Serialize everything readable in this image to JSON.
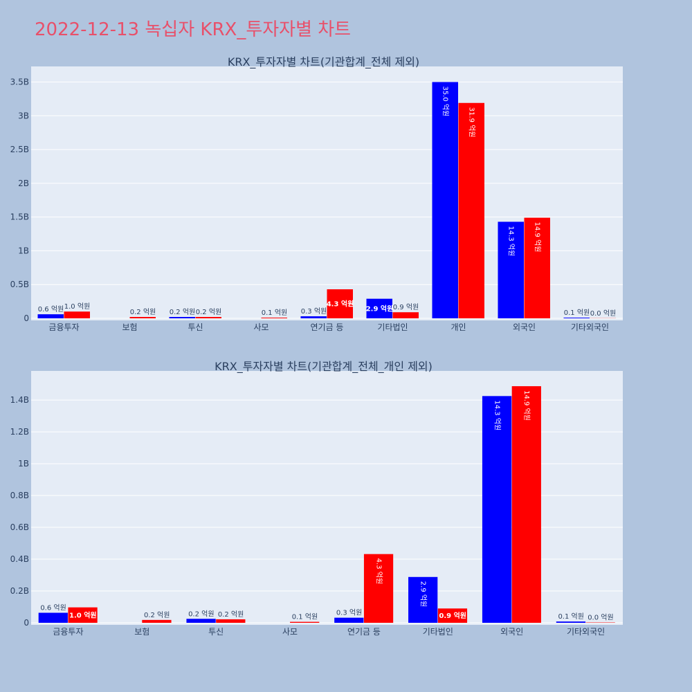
{
  "page_title": "2022-12-13 녹십자 KRX_투자자별 차트",
  "colors": {
    "buy": "#0000ff",
    "sell": "#ff0000",
    "plot_bg": "#e5ecf6",
    "page_bg": "#b0c4de"
  },
  "chart_data": [
    {
      "type": "bar",
      "title": "KRX_투자자별 차트(기관합계_전체 제외)",
      "categories": [
        "금융투자",
        "보험",
        "투신",
        "사모",
        "연기금 등",
        "기타법인",
        "개인",
        "외국인",
        "기타외국인"
      ],
      "series": [
        {
          "color": "#0000ff",
          "values": [
            0.06,
            0,
            0.02,
            0,
            0.03,
            0.29,
            3.5,
            1.43,
            0.01
          ],
          "labels": [
            "0.6 억원",
            "",
            "0.2 억원",
            "",
            "0.3 억원",
            "2.9 억원",
            "35.0 억원",
            "14.3 억원",
            "0.1 억원"
          ]
        },
        {
          "color": "#ff0000",
          "values": [
            0.1,
            0.02,
            0.02,
            0.01,
            0.43,
            0.09,
            3.19,
            1.49,
            0.002
          ],
          "labels": [
            "1.0 억원",
            "0.2 억원",
            "0.2 억원",
            "0.1 억원",
            "4.3 억원",
            "0.9 억원",
            "31.9 억원",
            "14.9 억원",
            "0.0 억원"
          ]
        }
      ],
      "y_ticks": [
        0,
        0.5,
        1,
        1.5,
        2,
        2.5,
        3,
        3.5
      ],
      "y_tick_labels": [
        "0",
        "0.5B",
        "1B",
        "1.5B",
        "2B",
        "2.5B",
        "3B",
        "3.5B"
      ],
      "ylim": [
        0,
        3.7
      ],
      "grid": true,
      "legend": "none"
    },
    {
      "type": "bar",
      "title": "KRX_투자자별 차트(기관합계_전체_개인 제외)",
      "categories": [
        "금융투자",
        "보험",
        "투신",
        "사모",
        "연기금 등",
        "기타법인",
        "외국인",
        "기타외국인"
      ],
      "series": [
        {
          "color": "#0000ff",
          "values": [
            0.063,
            0,
            0.025,
            0,
            0.032,
            0.288,
            1.425,
            0.008
          ],
          "labels": [
            "0.6 억원",
            "",
            "0.2 억원",
            "",
            "0.3 억원",
            "2.9 억원",
            "14.3 억원",
            "0.1 억원"
          ]
        },
        {
          "color": "#ff0000",
          "values": [
            0.097,
            0.018,
            0.022,
            0.006,
            0.432,
            0.09,
            1.487,
            0.002
          ],
          "labels": [
            "1.0 억원",
            "0.2 억원",
            "0.2 억원",
            "0.1 억원",
            "4.3 억원",
            "0.9 억원",
            "14.9 억원",
            "0.0 억원"
          ]
        }
      ],
      "y_ticks": [
        0,
        0.2,
        0.4,
        0.6,
        0.8,
        1.0,
        1.2,
        1.4
      ],
      "y_tick_labels": [
        "0",
        "0.2B",
        "0.4B",
        "0.6B",
        "0.8B",
        "1B",
        "1.2B",
        "1.4B"
      ],
      "ylim": [
        0,
        1.57
      ],
      "grid": true,
      "legend": "none"
    }
  ]
}
